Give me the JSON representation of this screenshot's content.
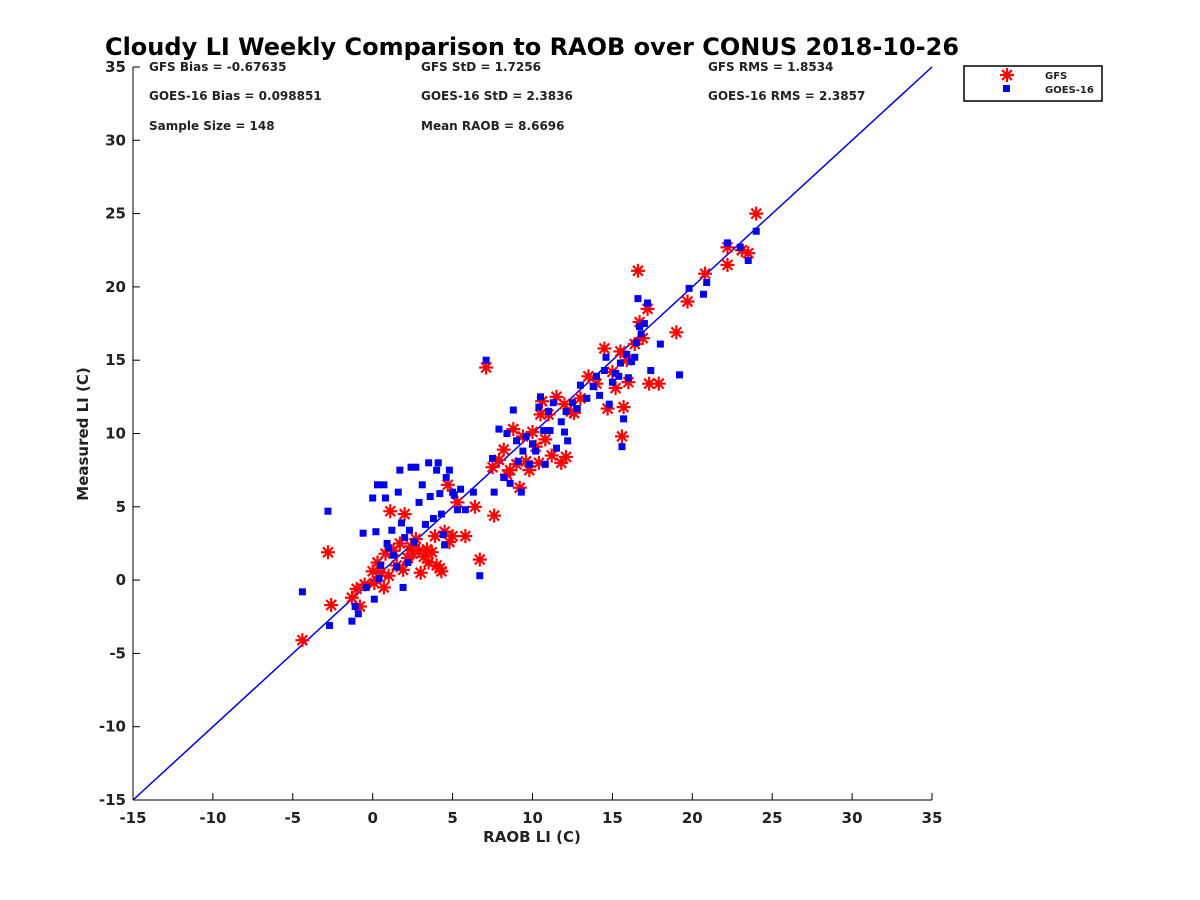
{
  "chart_data": {
    "type": "scatter",
    "title": "Cloudy LI Weekly Comparison to RAOB over CONUS 2018-10-26",
    "xlabel": "RAOB LI (C)",
    "ylabel": "Measured LI (C)",
    "xlim": [
      -15,
      35
    ],
    "ylim": [
      -15,
      35
    ],
    "xticks": [
      "-15",
      "-10",
      "-5",
      "0",
      "5",
      "10",
      "15",
      "20",
      "25",
      "30",
      "35"
    ],
    "yticks": [
      "-15",
      "-10",
      "-5",
      "0",
      "5",
      "10",
      "15",
      "20",
      "25",
      "30",
      "35"
    ],
    "grid": false,
    "legend_position": "outside top-right",
    "reference_line": {
      "x": [
        -15,
        35
      ],
      "y": [
        -15,
        35
      ],
      "color": "#0000dd"
    },
    "stats": [
      [
        "GFS Bias = -0.67635",
        "GFS StD = 1.7256",
        "GFS RMS = 1.8534"
      ],
      [
        "GOES-16 Bias = 0.098851",
        "GOES-16 StD = 2.3836",
        "GOES-16 RMS = 2.3857"
      ],
      [
        "Sample Size = 148",
        "Mean RAOB = 8.6696"
      ]
    ],
    "series": [
      {
        "name": "GFS",
        "marker": "asterisk",
        "color": "#ff0000",
        "points": [
          [
            -4.4,
            -4.1
          ],
          [
            -2.8,
            1.9
          ],
          [
            -2.6,
            -1.7
          ],
          [
            -1.3,
            -1.2
          ],
          [
            -1.0,
            -0.6
          ],
          [
            -0.8,
            -1.8
          ],
          [
            -0.5,
            -0.3
          ],
          [
            0.0,
            0.6
          ],
          [
            0.1,
            -0.2
          ],
          [
            0.3,
            1.2
          ],
          [
            0.5,
            0.5
          ],
          [
            0.7,
            -0.5
          ],
          [
            0.8,
            1.8
          ],
          [
            1.0,
            0.3
          ],
          [
            1.1,
            4.7
          ],
          [
            1.3,
            2.0
          ],
          [
            1.5,
            1.0
          ],
          [
            1.7,
            2.5
          ],
          [
            1.9,
            0.7
          ],
          [
            2.0,
            4.5
          ],
          [
            2.2,
            1.5
          ],
          [
            2.4,
            2.3
          ],
          [
            2.5,
            1.8
          ],
          [
            2.7,
            2.8
          ],
          [
            2.9,
            2.0
          ],
          [
            3.0,
            0.5
          ],
          [
            3.2,
            1.6
          ],
          [
            3.4,
            2.1
          ],
          [
            3.5,
            1.2
          ],
          [
            3.7,
            1.9
          ],
          [
            3.9,
            3.0
          ],
          [
            4.0,
            1.0
          ],
          [
            4.2,
            0.8
          ],
          [
            4.3,
            0.6
          ],
          [
            4.5,
            3.3
          ],
          [
            4.7,
            6.5
          ],
          [
            4.8,
            2.6
          ],
          [
            5.0,
            3.0
          ],
          [
            5.3,
            5.3
          ],
          [
            5.8,
            3.0
          ],
          [
            6.4,
            5.0
          ],
          [
            6.7,
            1.4
          ],
          [
            7.1,
            14.5
          ],
          [
            7.5,
            7.7
          ],
          [
            7.6,
            4.4
          ],
          [
            7.9,
            8.2
          ],
          [
            8.2,
            8.9
          ],
          [
            8.4,
            7.2
          ],
          [
            8.6,
            7.5
          ],
          [
            8.8,
            10.3
          ],
          [
            9.0,
            7.9
          ],
          [
            9.2,
            6.3
          ],
          [
            9.4,
            9.8
          ],
          [
            9.6,
            8.1
          ],
          [
            9.8,
            7.5
          ],
          [
            10.0,
            10.1
          ],
          [
            10.2,
            9.1
          ],
          [
            10.4,
            8.0
          ],
          [
            10.5,
            11.3
          ],
          [
            10.6,
            12.2
          ],
          [
            10.8,
            9.6
          ],
          [
            11.0,
            11.3
          ],
          [
            11.2,
            8.5
          ],
          [
            11.5,
            12.5
          ],
          [
            11.8,
            8.0
          ],
          [
            12.0,
            12.0
          ],
          [
            12.1,
            8.4
          ],
          [
            12.4,
            11.5
          ],
          [
            12.6,
            11.4
          ],
          [
            13.0,
            12.4
          ],
          [
            13.5,
            13.9
          ],
          [
            14.0,
            13.4
          ],
          [
            14.5,
            15.8
          ],
          [
            14.7,
            11.7
          ],
          [
            15.0,
            14.2
          ],
          [
            15.2,
            13.1
          ],
          [
            15.5,
            15.6
          ],
          [
            15.6,
            9.8
          ],
          [
            15.7,
            11.8
          ],
          [
            15.9,
            15.0
          ],
          [
            16.0,
            13.5
          ],
          [
            16.4,
            16.1
          ],
          [
            16.6,
            21.1
          ],
          [
            16.7,
            17.6
          ],
          [
            16.9,
            16.5
          ],
          [
            17.2,
            18.5
          ],
          [
            17.3,
            13.4
          ],
          [
            17.9,
            13.4
          ],
          [
            19.0,
            16.9
          ],
          [
            19.7,
            19.0
          ],
          [
            20.8,
            20.9
          ],
          [
            22.2,
            21.5
          ],
          [
            22.2,
            22.7
          ],
          [
            23.1,
            22.5
          ],
          [
            23.5,
            22.3
          ],
          [
            24.0,
            25.0
          ]
        ]
      },
      {
        "name": "GOES-16",
        "marker": "square",
        "color": "#0000ee",
        "points": [
          [
            -4.4,
            -0.8
          ],
          [
            -2.8,
            4.7
          ],
          [
            -2.7,
            -3.1
          ],
          [
            -1.3,
            -2.8
          ],
          [
            -1.1,
            -1.8
          ],
          [
            -0.9,
            -2.3
          ],
          [
            -0.6,
            3.2
          ],
          [
            -0.4,
            -0.5
          ],
          [
            0.0,
            5.6
          ],
          [
            0.1,
            -1.3
          ],
          [
            0.2,
            3.3
          ],
          [
            0.3,
            6.5
          ],
          [
            0.4,
            0.1
          ],
          [
            0.5,
            1.0
          ],
          [
            0.7,
            6.5
          ],
          [
            0.8,
            5.6
          ],
          [
            0.9,
            2.5
          ],
          [
            1.0,
            2.2
          ],
          [
            1.2,
            3.4
          ],
          [
            1.3,
            1.7
          ],
          [
            1.5,
            0.9
          ],
          [
            1.6,
            6.0
          ],
          [
            1.7,
            7.5
          ],
          [
            1.8,
            3.9
          ],
          [
            1.9,
            -0.5
          ],
          [
            2.0,
            2.9
          ],
          [
            2.2,
            1.2
          ],
          [
            2.3,
            3.4
          ],
          [
            2.4,
            7.7
          ],
          [
            2.6,
            2.6
          ],
          [
            2.7,
            7.7
          ],
          [
            2.9,
            5.3
          ],
          [
            3.1,
            6.5
          ],
          [
            3.3,
            3.8
          ],
          [
            3.5,
            8.0
          ],
          [
            3.6,
            5.7
          ],
          [
            3.8,
            4.2
          ],
          [
            4.0,
            7.5
          ],
          [
            4.1,
            8.0
          ],
          [
            4.2,
            5.9
          ],
          [
            4.3,
            4.5
          ],
          [
            4.4,
            3.1
          ],
          [
            4.5,
            2.4
          ],
          [
            4.6,
            7.0
          ],
          [
            4.8,
            7.5
          ],
          [
            5.0,
            6.0
          ],
          [
            5.1,
            5.8
          ],
          [
            5.3,
            4.8
          ],
          [
            5.5,
            6.2
          ],
          [
            5.8,
            4.8
          ],
          [
            6.3,
            6.0
          ],
          [
            6.7,
            0.3
          ],
          [
            7.1,
            15.0
          ],
          [
            7.5,
            8.3
          ],
          [
            7.6,
            6.0
          ],
          [
            7.9,
            10.3
          ],
          [
            8.2,
            7.0
          ],
          [
            8.4,
            10.0
          ],
          [
            8.6,
            6.6
          ],
          [
            8.8,
            11.6
          ],
          [
            9.0,
            9.5
          ],
          [
            9.1,
            8.1
          ],
          [
            9.3,
            6.0
          ],
          [
            9.4,
            8.8
          ],
          [
            9.6,
            9.8
          ],
          [
            9.8,
            7.9
          ],
          [
            10.0,
            9.3
          ],
          [
            10.2,
            8.8
          ],
          [
            10.4,
            11.8
          ],
          [
            10.5,
            12.5
          ],
          [
            10.7,
            10.2
          ],
          [
            10.8,
            7.9
          ],
          [
            11.0,
            11.5
          ],
          [
            11.1,
            10.2
          ],
          [
            11.3,
            12.1
          ],
          [
            11.5,
            9.0
          ],
          [
            11.8,
            10.8
          ],
          [
            12.0,
            10.1
          ],
          [
            12.1,
            11.5
          ],
          [
            12.2,
            9.5
          ],
          [
            12.5,
            12.1
          ],
          [
            12.8,
            11.7
          ],
          [
            13.0,
            13.3
          ],
          [
            13.4,
            12.4
          ],
          [
            13.8,
            13.2
          ],
          [
            14.0,
            13.9
          ],
          [
            14.2,
            12.6
          ],
          [
            14.5,
            14.3
          ],
          [
            14.6,
            15.2
          ],
          [
            14.8,
            12.0
          ],
          [
            15.0,
            13.5
          ],
          [
            15.2,
            14.1
          ],
          [
            15.4,
            13.9
          ],
          [
            15.5,
            14.8
          ],
          [
            15.6,
            9.1
          ],
          [
            15.7,
            11.0
          ],
          [
            15.9,
            15.4
          ],
          [
            16.0,
            13.8
          ],
          [
            16.2,
            14.9
          ],
          [
            16.4,
            15.2
          ],
          [
            16.5,
            16.2
          ],
          [
            16.6,
            19.2
          ],
          [
            16.7,
            17.3
          ],
          [
            16.8,
            16.8
          ],
          [
            17.0,
            17.5
          ],
          [
            17.2,
            18.9
          ],
          [
            17.4,
            14.3
          ],
          [
            18.0,
            16.1
          ],
          [
            19.2,
            14.0
          ],
          [
            19.8,
            19.9
          ],
          [
            20.7,
            19.5
          ],
          [
            20.9,
            20.3
          ],
          [
            22.2,
            23.0
          ],
          [
            23.0,
            22.7
          ],
          [
            23.5,
            21.8
          ],
          [
            24.0,
            23.8
          ]
        ]
      }
    ]
  }
}
